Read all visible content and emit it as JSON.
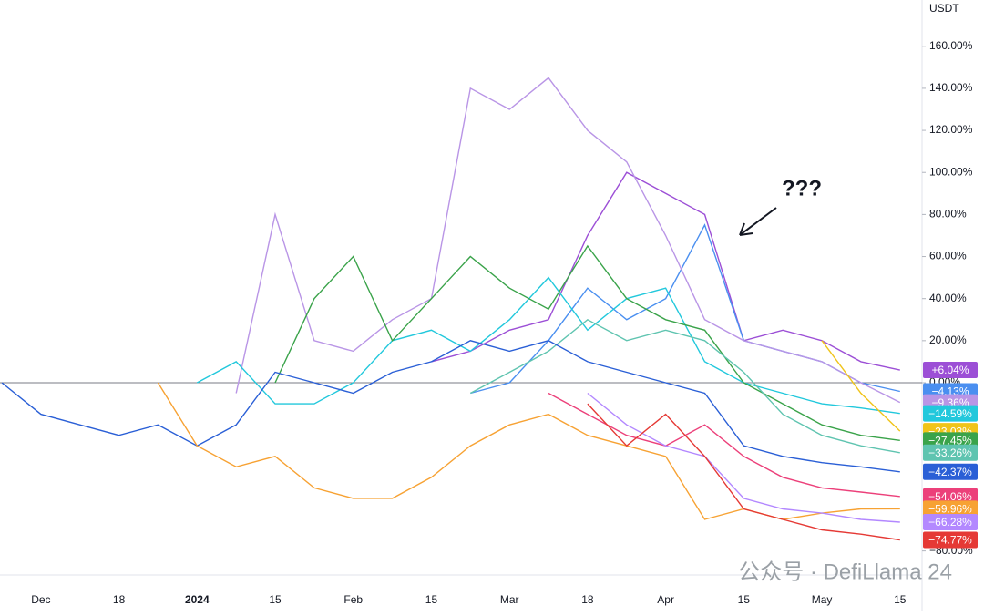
{
  "chart_data": {
    "type": "line",
    "unit_label": "USDT",
    "annotation": "???",
    "watermark": "公众号 · DefiLlama 24",
    "categories": [
      null,
      "Dec",
      null,
      "18",
      null,
      "2024",
      null,
      "15",
      null,
      "Feb",
      null,
      "15",
      null,
      "Mar",
      null,
      "18",
      null,
      "Apr",
      null,
      "15",
      null,
      "May",
      null,
      "15"
    ],
    "ylim": [
      -91,
      182
    ],
    "yticks": [
      {
        "value": 160,
        "label": "160.00%"
      },
      {
        "value": 140,
        "label": "140.00%"
      },
      {
        "value": 120,
        "label": "120.00%"
      },
      {
        "value": 100,
        "label": "100.00%"
      },
      {
        "value": 80,
        "label": "80.00%"
      },
      {
        "value": 60,
        "label": "60.00%"
      },
      {
        "value": 40,
        "label": "40.00%"
      },
      {
        "value": 20,
        "label": "20.00%"
      },
      {
        "value": 0,
        "label": "0.00%"
      },
      {
        "value": -80,
        "label": "−80.00%"
      }
    ],
    "series": [
      {
        "color": "#9c4fd6",
        "values": [
          null,
          null,
          null,
          null,
          null,
          null,
          null,
          null,
          null,
          null,
          null,
          10,
          15,
          25,
          30,
          70,
          100,
          90,
          80,
          20,
          25,
          20,
          10,
          6.04
        ],
        "value_labels": "+6.04%"
      },
      {
        "color": "#4a8ff0",
        "values": [
          null,
          null,
          null,
          null,
          null,
          null,
          null,
          null,
          null,
          null,
          null,
          null,
          -5,
          0,
          20,
          45,
          30,
          40,
          75,
          20,
          15,
          10,
          0,
          -4.13
        ],
        "value_labels": "−4.13%"
      },
      {
        "color": "#b995e6",
        "values": [
          null,
          null,
          null,
          null,
          null,
          null,
          -5,
          80,
          20,
          15,
          30,
          40,
          140,
          130,
          145,
          120,
          105,
          70,
          30,
          20,
          15,
          10,
          0,
          -9.36
        ],
        "value_labels": "−9.36%"
      },
      {
        "color": "#22c8dc",
        "values": [
          null,
          null,
          null,
          null,
          null,
          0,
          10,
          -10,
          -10,
          0,
          20,
          25,
          15,
          30,
          50,
          25,
          40,
          45,
          10,
          0,
          -5,
          -10,
          -12,
          -14.59
        ],
        "value_labels": "−14.59%"
      },
      {
        "color": "#f0c419",
        "values": [
          null,
          null,
          null,
          null,
          null,
          null,
          null,
          null,
          null,
          null,
          null,
          null,
          null,
          null,
          null,
          null,
          null,
          null,
          null,
          null,
          null,
          20,
          -5,
          -23.03
        ],
        "value_labels": "−23.03%"
      },
      {
        "color": "#3aa34a",
        "values": [
          null,
          null,
          null,
          null,
          null,
          null,
          null,
          0,
          40,
          60,
          20,
          40,
          60,
          45,
          35,
          65,
          40,
          30,
          25,
          0,
          -10,
          -20,
          -25,
          -27.45
        ],
        "value_labels": "−27.45%"
      },
      {
        "color": "#5fc4b0",
        "values": [
          null,
          null,
          null,
          null,
          null,
          null,
          null,
          null,
          null,
          null,
          null,
          null,
          -5,
          5,
          15,
          30,
          20,
          25,
          20,
          5,
          -15,
          -25,
          -30,
          -33.26
        ],
        "value_labels": "−33.26%"
      },
      {
        "color": "#2a5fd6",
        "values": [
          0,
          -15,
          -20,
          -25,
          -20,
          -30,
          -20,
          5,
          0,
          -5,
          5,
          10,
          20,
          15,
          20,
          10,
          5,
          0,
          -5,
          -30,
          -35,
          -38,
          -40,
          -42.37
        ],
        "value_labels": "−42.37%"
      },
      {
        "color": "#ec407a",
        "values": [
          null,
          null,
          null,
          null,
          null,
          null,
          null,
          null,
          null,
          null,
          null,
          null,
          null,
          null,
          -5,
          -15,
          -25,
          -30,
          -20,
          -35,
          -45,
          -50,
          -52,
          -54.06
        ],
        "value_labels": "−54.06%"
      },
      {
        "color": "#f7a233",
        "values": [
          null,
          null,
          null,
          null,
          0,
          -30,
          -40,
          -35,
          -50,
          -55,
          -55,
          -45,
          -30,
          -20,
          -15,
          -25,
          -30,
          -35,
          -65,
          -60,
          -65,
          -62,
          -60,
          -59.96
        ],
        "value_labels": "−59.96%"
      },
      {
        "color": "#b388ff",
        "values": [
          null,
          null,
          null,
          null,
          null,
          null,
          null,
          null,
          null,
          null,
          null,
          null,
          null,
          null,
          null,
          -5,
          -20,
          -30,
          -35,
          -55,
          -60,
          -62,
          -65,
          -66.28
        ],
        "value_labels": "−66.28%"
      },
      {
        "color": "#e53935",
        "values": [
          null,
          null,
          null,
          null,
          null,
          null,
          null,
          null,
          null,
          null,
          null,
          null,
          null,
          null,
          null,
          -10,
          -30,
          -15,
          -35,
          -60,
          -65,
          -70,
          -72,
          -74.77
        ],
        "value_labels": "−74.77%"
      }
    ]
  }
}
